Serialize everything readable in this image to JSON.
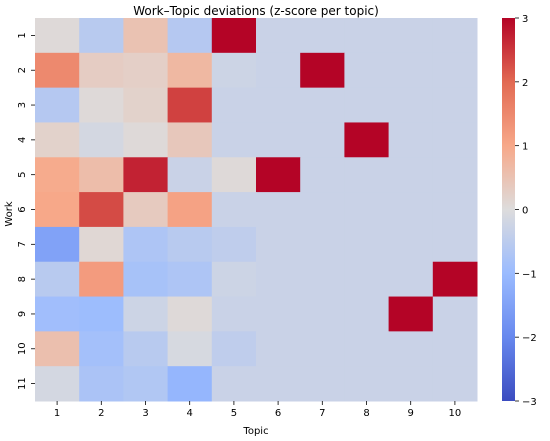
{
  "chart_data": {
    "type": "heatmap",
    "title": "Work–Topic deviations (z-score per topic)",
    "xlabel": "Topic",
    "ylabel": "Work",
    "x_categories": [
      "1",
      "2",
      "3",
      "4",
      "5",
      "6",
      "7",
      "8",
      "9",
      "10"
    ],
    "y_categories": [
      "1",
      "2",
      "3",
      "4",
      "5",
      "6",
      "7",
      "8",
      "9",
      "10",
      "11"
    ],
    "values": [
      [
        0.05,
        -0.55,
        0.5,
        -0.6,
        3.0,
        -0.3,
        -0.3,
        -0.3,
        -0.3,
        -0.3
      ],
      [
        1.5,
        0.3,
        0.25,
        0.7,
        -0.25,
        -0.3,
        3.0,
        -0.3,
        -0.3,
        -0.3
      ],
      [
        -0.6,
        0.05,
        0.2,
        2.4,
        -0.3,
        -0.3,
        -0.3,
        -0.3,
        -0.3,
        -0.3
      ],
      [
        0.2,
        -0.15,
        0.05,
        0.4,
        -0.3,
        -0.3,
        -0.3,
        3.0,
        -0.3,
        -0.3
      ],
      [
        0.95,
        0.6,
        2.7,
        -0.3,
        0.05,
        3.0,
        -0.3,
        -0.3,
        -0.3,
        -0.3
      ],
      [
        1.0,
        2.3,
        0.35,
        1.1,
        -0.3,
        -0.3,
        -0.3,
        -0.3,
        -0.3,
        -0.3
      ],
      [
        -1.5,
        0.1,
        -0.7,
        -0.55,
        -0.45,
        -0.3,
        -0.3,
        -0.3,
        -0.3,
        -0.3
      ],
      [
        -0.55,
        1.2,
        -0.8,
        -0.7,
        -0.25,
        -0.3,
        -0.3,
        -0.3,
        -0.3,
        3.0
      ],
      [
        -0.9,
        -0.95,
        -0.25,
        0.05,
        -0.3,
        -0.3,
        -0.3,
        -0.3,
        3.0,
        -0.3
      ],
      [
        0.55,
        -0.85,
        -0.55,
        -0.1,
        -0.45,
        -0.3,
        -0.3,
        -0.3,
        -0.3,
        -0.3
      ],
      [
        -0.15,
        -0.75,
        -0.65,
        -1.1,
        -0.3,
        -0.3,
        -0.3,
        -0.3,
        -0.3,
        -0.3
      ]
    ],
    "colorbar": {
      "colormap": "coolwarm",
      "range": [
        -3,
        3
      ],
      "ticks": [
        "3",
        "2",
        "1",
        "0",
        "−1",
        "−2",
        "−3"
      ],
      "tick_values": [
        3,
        2,
        1,
        0,
        -1,
        -2,
        -3
      ]
    },
    "grid": false
  }
}
